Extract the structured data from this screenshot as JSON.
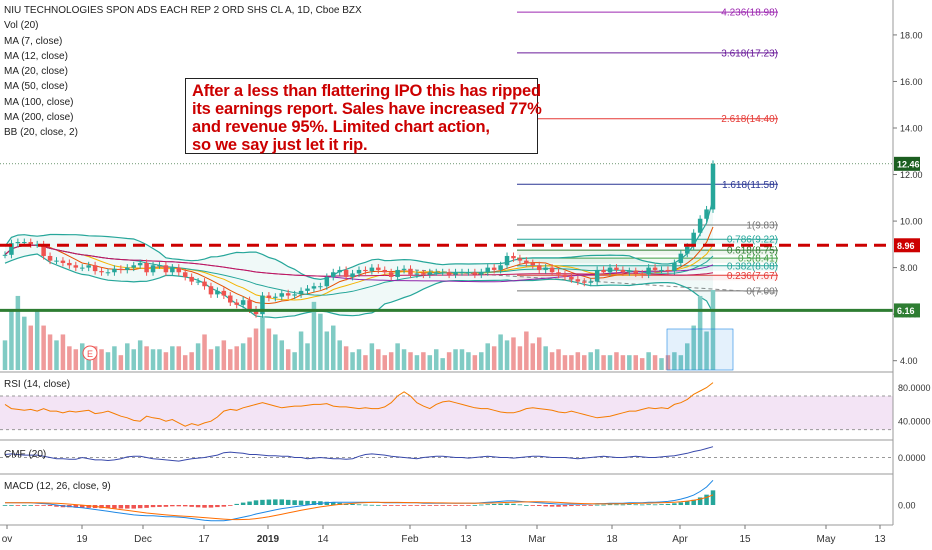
{
  "legend": {
    "title": "NIU TECHNOLOGIES SPON ADS EACH REP 2 ORD SHS CL A, 1D, Cboe BZX",
    "items": [
      "Vol (20)",
      "MA (7, close)",
      "MA (12, close)",
      "MA (20, close)",
      "MA (50, close)",
      "MA (100, close)",
      "MA (200, close)",
      "BB (20, close, 2)"
    ]
  },
  "annotation": {
    "lines": [
      "After a less than flattering IPO this has ripped",
      "its earnings report. Sales have increased 77%",
      "and revenue 95%. Limited chart action,",
      "so we say just let it rip."
    ]
  },
  "earnings_marker": "E",
  "panels": {
    "rsi_label": "RSI (14, close)",
    "cmf_label": "CMF (20)",
    "macd_label": "MACD (12, 26, close, 9)"
  },
  "colors": {
    "up": "#26a69a",
    "down": "#ef5350",
    "annotation_text": "#cc0000",
    "resistance": "#cc0000",
    "support": "#2e7d32",
    "last_price": "#1b5e20"
  },
  "chart_data": {
    "type": "candlestick",
    "title": "NIU TECHNOLOGIES SPON ADS EACH REP 2 ORD SHS CL A, 1D, Cboe BZX",
    "x_ticks": [
      "ov",
      "19",
      "Dec",
      "17",
      "2019",
      "14",
      "Feb",
      "13",
      "Mar",
      "18",
      "Apr",
      "15",
      "May",
      "13"
    ],
    "y_ticks": [
      "18.00",
      "16.00",
      "14.00",
      "12.00",
      "10.00",
      "8.00",
      "6.00",
      "4.00"
    ],
    "ylim": [
      3.6,
      19.2
    ],
    "close": [
      8.55,
      9.05,
      9.1,
      9.1,
      9.0,
      9.0,
      8.5,
      8.3,
      8.3,
      8.2,
      8.1,
      8.0,
      8.0,
      8.1,
      7.85,
      7.8,
      7.8,
      7.95,
      7.9,
      8.0,
      8.1,
      8.2,
      7.8,
      8.1,
      8.1,
      7.8,
      8.0,
      7.8,
      7.6,
      7.4,
      7.4,
      7.2,
      6.85,
      7.0,
      6.8,
      6.5,
      6.4,
      6.6,
      6.2,
      6.0,
      6.8,
      6.7,
      6.75,
      6.9,
      6.8,
      6.85,
      7.0,
      7.1,
      7.2,
      7.2,
      7.6,
      7.8,
      7.9,
      7.6,
      7.75,
      7.9,
      7.85,
      8.0,
      7.9,
      7.8,
      7.6,
      7.9,
      7.95,
      7.7,
      7.75,
      7.7,
      7.8,
      7.8,
      7.8,
      7.7,
      7.8,
      7.8,
      7.8,
      7.7,
      7.8,
      8.0,
      7.9,
      8.1,
      8.5,
      8.4,
      8.3,
      8.2,
      8.1,
      7.9,
      8.0,
      7.8,
      7.7,
      7.6,
      7.5,
      7.4,
      7.35,
      7.4,
      7.9,
      7.8,
      8.0,
      7.9,
      7.8,
      7.85,
      7.75,
      7.7,
      8.0,
      7.9,
      7.9,
      7.85,
      8.2,
      8.6,
      8.9,
      9.5,
      10.1,
      10.5,
      12.46
    ],
    "series": [
      {
        "name": "Vol (20)",
        "type": "volume",
        "values": [
          1,
          2,
          2.5,
          1.8,
          1.5,
          2,
          1.5,
          1.2,
          1,
          1.2,
          0.8,
          0.7,
          0.9,
          0.6,
          0.8,
          0.7,
          0.6,
          0.8,
          0.5,
          0.9,
          0.7,
          1,
          0.8,
          0.7,
          0.7,
          0.6,
          0.8,
          0.8,
          0.5,
          0.6,
          0.9,
          1.2,
          0.7,
          0.8,
          1,
          0.7,
          0.8,
          0.9,
          1.1,
          1.4,
          1.8,
          1.4,
          1.2,
          1,
          0.7,
          0.6,
          1.3,
          0.9,
          2.3,
          1.9,
          1.3,
          1.5,
          1,
          0.8,
          0.6,
          0.7,
          0.5,
          0.9,
          0.7,
          0.5,
          0.6,
          0.9,
          0.7,
          0.6,
          0.5,
          0.6,
          0.5,
          0.7,
          0.4,
          0.6,
          0.7,
          0.7,
          0.6,
          0.5,
          0.6,
          0.9,
          0.8,
          1.2,
          1,
          1.1,
          0.8,
          1.3,
          0.9,
          1.1,
          0.8,
          0.6,
          0.7,
          0.5,
          0.5,
          0.6,
          0.5,
          0.6,
          0.7,
          0.5,
          0.5,
          0.6,
          0.5,
          0.5,
          0.5,
          0.4,
          0.6,
          0.5,
          0.4,
          0.5,
          0.6,
          0.5,
          0.9,
          1.5,
          2.5,
          1.3,
          2.7
        ]
      },
      {
        "name": "RSI (14, close)",
        "type": "rsi",
        "values": [
          60,
          55,
          54,
          53,
          54,
          52,
          55,
          52,
          52,
          50,
          52,
          51,
          52,
          53,
          49,
          50,
          52,
          49,
          46,
          44,
          41,
          40,
          46,
          44,
          43,
          40,
          42,
          38,
          34,
          37,
          35,
          38,
          40,
          45,
          52,
          54,
          53,
          56,
          58,
          60,
          62,
          60,
          58,
          56,
          57,
          58,
          58,
          59,
          60,
          60,
          61,
          58,
          57,
          57,
          56,
          55,
          56,
          55,
          55,
          57,
          62,
          70,
          75,
          70,
          62,
          58,
          55,
          60,
          63,
          64,
          62,
          60,
          58,
          56,
          55,
          55,
          53,
          51,
          50,
          50,
          52,
          55,
          56,
          55,
          54,
          53,
          51,
          50,
          52,
          50,
          48,
          46,
          44,
          45,
          46,
          48,
          50,
          52,
          52,
          54,
          56,
          55,
          56,
          55,
          60,
          62,
          66,
          72,
          76,
          80,
          86
        ]
      },
      {
        "name": "CMF (20)",
        "type": "cmf",
        "values": [
          0.05,
          0.06,
          0.05,
          0.04,
          0.04,
          0.04,
          0.02,
          0.0,
          -0.02,
          -0.02,
          -0.03,
          -0.03,
          0.0,
          -0.02,
          -0.04,
          -0.04,
          -0.05,
          -0.04,
          -0.02,
          0.01,
          0.02,
          0.02,
          0.0,
          -0.02,
          -0.03,
          -0.04,
          -0.05,
          -0.06,
          -0.04,
          -0.02,
          -0.01,
          0.0,
          0.02,
          0.04,
          0.08,
          0.09,
          0.08,
          0.07,
          0.05,
          0.05,
          0.04,
          0.03,
          0.03,
          0.02,
          0.02,
          0.0,
          0.0,
          -0.02,
          -0.01,
          0.0,
          -0.01,
          -0.02,
          -0.02,
          -0.03,
          -0.02,
          0.02,
          0.05,
          0.06,
          0.05,
          0.04,
          0.02,
          0.01,
          0.0,
          -0.01,
          -0.02,
          0.0,
          0.01,
          0.02,
          0.02,
          0.01,
          0.0,
          0.0,
          -0.01,
          0.0,
          0.01,
          0.02,
          0.01,
          0.0,
          0.0,
          -0.01,
          0.0,
          0.01,
          0.02,
          0.02,
          0.01,
          0.0,
          0.0,
          0.0,
          -0.01,
          -0.02,
          -0.01,
          0.0,
          0.01,
          0.02,
          0.01,
          0.0,
          0.0,
          0.01,
          0.02,
          0.01,
          0.0,
          0.0,
          0.01,
          0.02,
          0.03,
          0.05,
          0.07,
          0.1,
          0.12,
          0.15,
          0.18
        ]
      },
      {
        "name": "MACD (12, 26, close, 9)",
        "type": "macd",
        "values": [
          0.05,
          0.05,
          0.05,
          0.05,
          0.05,
          0.04,
          0.03,
          0.02,
          0.0,
          -0.02,
          -0.03,
          -0.05,
          -0.06,
          -0.08,
          -0.1,
          -0.12,
          -0.14,
          -0.16,
          -0.18,
          -0.2,
          -0.22,
          -0.23,
          -0.24,
          -0.24,
          -0.25,
          -0.26,
          -0.26,
          -0.27,
          -0.28,
          -0.3,
          -0.32,
          -0.34,
          -0.35,
          -0.35,
          -0.35,
          -0.33,
          -0.3,
          -0.27,
          -0.24,
          -0.2,
          -0.17,
          -0.14,
          -0.11,
          -0.08,
          -0.06,
          -0.04,
          -0.02,
          0.0,
          0.02,
          0.04,
          0.05,
          0.06,
          0.06,
          0.06,
          0.06,
          0.06,
          0.06,
          0.06,
          0.06,
          0.05,
          0.05,
          0.05,
          0.05,
          0.05,
          0.05,
          0.04,
          0.04,
          0.04,
          0.04,
          0.04,
          0.04,
          0.04,
          0.04,
          0.04,
          0.05,
          0.06,
          0.07,
          0.08,
          0.09,
          0.09,
          0.08,
          0.07,
          0.06,
          0.05,
          0.04,
          0.03,
          0.02,
          0.02,
          0.02,
          0.02,
          0.02,
          0.02,
          0.03,
          0.03,
          0.04,
          0.04,
          0.04,
          0.05,
          0.05,
          0.05,
          0.06,
          0.06,
          0.07,
          0.08,
          0.1,
          0.13,
          0.17,
          0.22,
          0.3,
          0.4,
          0.55
        ]
      }
    ],
    "fibonacci": [
      {
        "level": "4.236",
        "value": 18.98
      },
      {
        "level": "3.618",
        "value": 17.23
      },
      {
        "level": "2.618",
        "value": 14.4
      },
      {
        "level": "1.618",
        "value": 11.58
      },
      {
        "level": "1",
        "value": 9.83
      },
      {
        "level": "0.786",
        "value": 9.22
      },
      {
        "level": "0.618",
        "value": 8.75
      },
      {
        "level": "0.5",
        "value": 8.41
      },
      {
        "level": "0.382",
        "value": 8.08
      },
      {
        "level": "0.236",
        "value": 7.67
      },
      {
        "level": "0",
        "value": 7.0
      }
    ],
    "resistance_line": 8.96,
    "support_line": 6.16,
    "last_price": 12.46,
    "rsi_ticks": [
      "80.0000",
      "40.0000"
    ],
    "cmf_ticks": [
      "0.0000"
    ],
    "macd_ticks": [
      "0.00"
    ]
  }
}
